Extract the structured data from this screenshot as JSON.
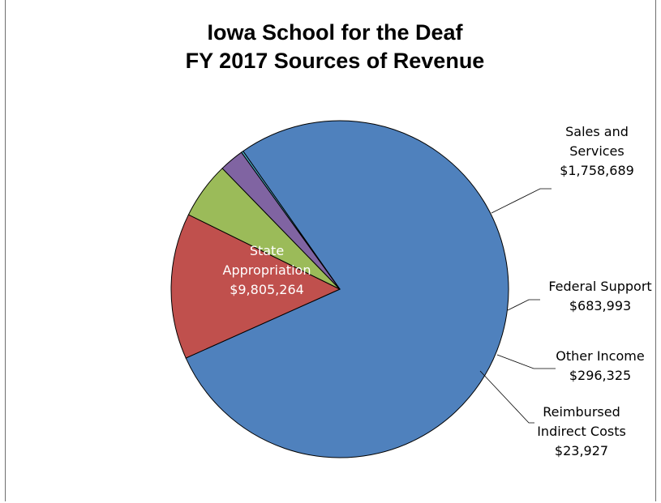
{
  "chart_data": {
    "type": "pie",
    "title": "Iowa School for the Deaf",
    "subtitle": "FY 2017 Sources of Revenue",
    "start_angle_deg": -125,
    "slices": [
      {
        "label_lines": [
          "State",
          "Appropriation"
        ],
        "value_text": "$9,805,264",
        "value": 9805264,
        "color": "#4f81bd"
      },
      {
        "label_lines": [
          "Sales and",
          "Services"
        ],
        "value_text": "$1,758,689",
        "value": 1758689,
        "color": "#c0504d"
      },
      {
        "label_lines": [
          "Federal Support"
        ],
        "value_text": "$683,993",
        "value": 683993,
        "color": "#9bbb59"
      },
      {
        "label_lines": [
          "Other Income"
        ],
        "value_text": "$296,325",
        "value": 296325,
        "color": "#8064a2"
      },
      {
        "label_lines": [
          "Reimbursed",
          "Indirect Costs"
        ],
        "value_text": "$23,927",
        "value": 23927,
        "color": "#4bacc6"
      }
    ],
    "legend": "none"
  }
}
